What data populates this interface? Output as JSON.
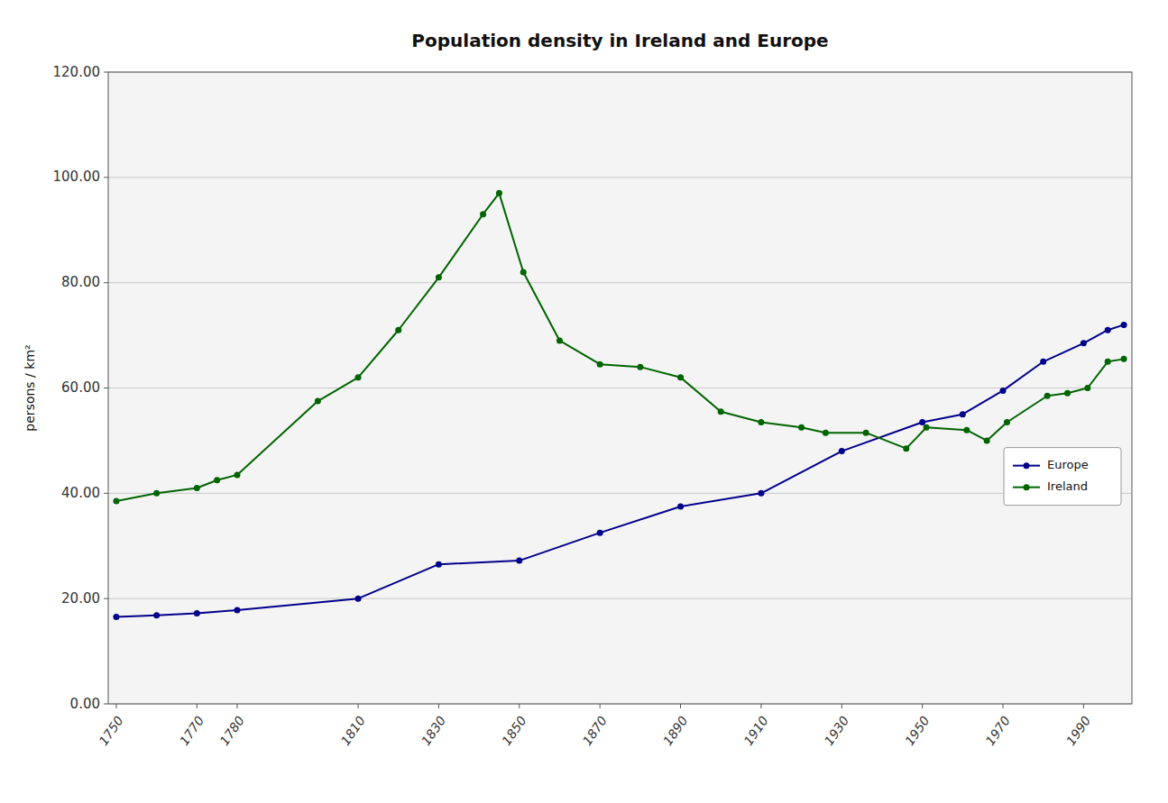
{
  "chart_data": {
    "type": "line",
    "title": "Population density in Ireland and Europe",
    "y_label": "persons / km²",
    "series": [
      {
        "name": "Europe",
        "color": "#00008B",
        "marker": "circle",
        "x": [
          1750,
          1760,
          1770,
          1780,
          1810,
          1830,
          1850,
          1870,
          1890,
          1910,
          1930,
          1950,
          1960,
          1970,
          1980,
          1990,
          1996,
          2000
        ],
        "values": [
          16.5,
          16.8,
          17.2,
          17.8,
          20.0,
          26.5,
          27.2,
          32.5,
          37.5,
          40.0,
          48.0,
          53.5,
          55.0,
          59.5,
          65.0,
          68.5,
          71.0,
          72.0
        ]
      },
      {
        "name": "Ireland",
        "color": "#006400",
        "marker": "circle",
        "x": [
          1750,
          1760,
          1770,
          1775,
          1780,
          1800,
          1810,
          1820,
          1830,
          1841,
          1845,
          1851,
          1860,
          1870,
          1880,
          1890,
          1900,
          1910,
          1920,
          1926,
          1936,
          1946,
          1951,
          1961,
          1966,
          1971,
          1981,
          1986,
          1991,
          1996,
          2000
        ],
        "values": [
          38.5,
          40.0,
          41.0,
          42.5,
          43.5,
          57.5,
          62.0,
          71.0,
          81.0,
          93.0,
          97.0,
          82.0,
          69.0,
          64.5,
          64.0,
          62.0,
          55.5,
          53.5,
          52.5,
          51.5,
          51.5,
          48.5,
          52.5,
          52.0,
          50.0,
          53.5,
          58.5,
          59.0,
          60.0,
          65.0,
          65.5
        ]
      }
    ],
    "xlim": [
      1748,
      2002
    ],
    "ylim": [
      0,
      120
    ],
    "xticks": [
      1750,
      1770,
      1780,
      1810,
      1830,
      1850,
      1870,
      1890,
      1910,
      1930,
      1950,
      1970,
      1990
    ],
    "yticks": [
      {
        "value": 0,
        "label": "0.00"
      },
      {
        "value": 20,
        "label": "20.00"
      },
      {
        "value": 40,
        "label": "40.00"
      },
      {
        "value": 60,
        "label": "60.00"
      },
      {
        "value": 80,
        "label": "80.00"
      },
      {
        "value": 100,
        "label": "100.00"
      },
      {
        "value": 120,
        "label": "120.00"
      }
    ],
    "grid": "y",
    "legend": "right"
  }
}
